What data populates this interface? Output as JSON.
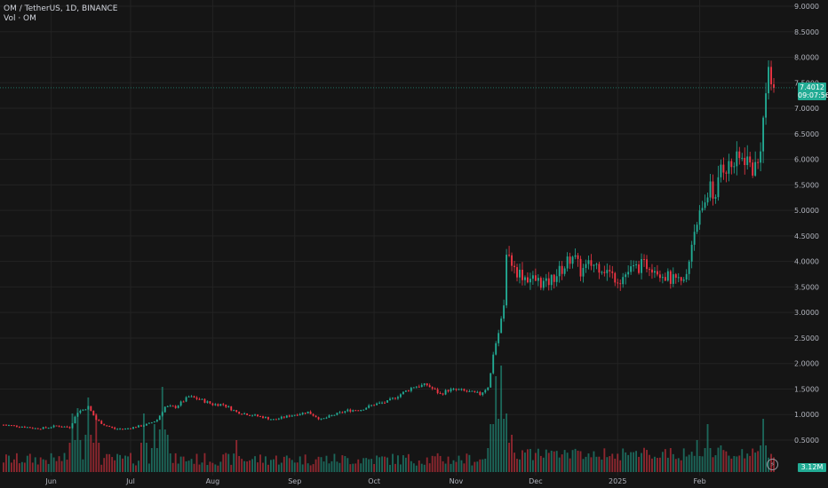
{
  "legend": {
    "symbol_line": "OM / TetherUS, 1D, BINANCE",
    "volume_line": "Vol · OM"
  },
  "badges": {
    "last_price": "7.4012",
    "countdown": "09:07:56",
    "volume": "3.12M"
  },
  "colors": {
    "up": "#22ab94",
    "down": "#f23645",
    "background": "#151515",
    "grid": "#232323",
    "axis_text": "#b2b5be"
  },
  "chart_data": {
    "type": "candlestick",
    "title": "OM / TetherUS, 1D, BINANCE",
    "y_axis_side": "right",
    "y_ticks": [
      "9.0000",
      "8.5000",
      "8.0000",
      "7.5000",
      "7.0000",
      "6.5000",
      "6.0000",
      "5.5000",
      "5.0000",
      "4.5000",
      "4.0000",
      "3.5000",
      "3.0000",
      "2.5000",
      "2.0000",
      "1.5000",
      "1.0000",
      "0.5000"
    ],
    "ylim": [
      0,
      9.1
    ],
    "x_ticks": [
      "Jun",
      "Jul",
      "Aug",
      "Sep",
      "Oct",
      "Nov",
      "Dec",
      "2025",
      "Feb"
    ],
    "x_tick_days": [
      18,
      48,
      79,
      110,
      140,
      171,
      201,
      232,
      263
    ],
    "period_days": 292,
    "last_price": 7.4012,
    "close_keyframes": [
      [
        0,
        0.8
      ],
      [
        8,
        0.76
      ],
      [
        12,
        0.73
      ],
      [
        16,
        0.74
      ],
      [
        20,
        0.78
      ],
      [
        25,
        0.75
      ],
      [
        28,
        1.05
      ],
      [
        32,
        1.15
      ],
      [
        35,
        0.9
      ],
      [
        38,
        0.8
      ],
      [
        42,
        0.72
      ],
      [
        46,
        0.72
      ],
      [
        52,
        0.78
      ],
      [
        55,
        0.82
      ],
      [
        58,
        0.9
      ],
      [
        61,
        1.15
      ],
      [
        65,
        1.15
      ],
      [
        70,
        1.35
      ],
      [
        74,
        1.3
      ],
      [
        79,
        1.2
      ],
      [
        83,
        1.2
      ],
      [
        88,
        1.05
      ],
      [
        93,
        1.0
      ],
      [
        98,
        0.95
      ],
      [
        102,
        0.9
      ],
      [
        106,
        0.95
      ],
      [
        110,
        1.0
      ],
      [
        115,
        1.05
      ],
      [
        120,
        0.9
      ],
      [
        124,
        0.98
      ],
      [
        130,
        1.08
      ],
      [
        135,
        1.1
      ],
      [
        140,
        1.2
      ],
      [
        145,
        1.25
      ],
      [
        150,
        1.4
      ],
      [
        155,
        1.55
      ],
      [
        160,
        1.58
      ],
      [
        165,
        1.4
      ],
      [
        168,
        1.48
      ],
      [
        172,
        1.48
      ],
      [
        175,
        1.45
      ],
      [
        180,
        1.4
      ],
      [
        183,
        1.55
      ],
      [
        184,
        1.8
      ],
      [
        185,
        2.2
      ],
      [
        187,
        2.6
      ],
      [
        189,
        3.1
      ],
      [
        190,
        4.25
      ],
      [
        193,
        3.85
      ],
      [
        197,
        3.7
      ],
      [
        200,
        3.65
      ],
      [
        205,
        3.55
      ],
      [
        208,
        3.7
      ],
      [
        212,
        3.9
      ],
      [
        215,
        4.15
      ],
      [
        218,
        3.8
      ],
      [
        222,
        3.95
      ],
      [
        226,
        3.9
      ],
      [
        230,
        3.72
      ],
      [
        233,
        3.65
      ],
      [
        236,
        3.8
      ],
      [
        240,
        3.9
      ],
      [
        244,
        3.95
      ],
      [
        248,
        3.8
      ],
      [
        252,
        3.65
      ],
      [
        256,
        3.55
      ],
      [
        258,
        3.7
      ],
      [
        259,
        4.0
      ],
      [
        260,
        4.4
      ],
      [
        262,
        4.85
      ],
      [
        264,
        4.9
      ],
      [
        266,
        5.3
      ],
      [
        267,
        5.6
      ],
      [
        269,
        5.15
      ],
      [
        271,
        5.9
      ],
      [
        274,
        5.85
      ],
      [
        277,
        5.95
      ],
      [
        280,
        6.05
      ],
      [
        283,
        5.82
      ],
      [
        285,
        5.9
      ],
      [
        287,
        6.75
      ],
      [
        288,
        7.3
      ],
      [
        289,
        7.55
      ],
      [
        291,
        7.4
      ]
    ],
    "volume_scale_note": "volume shown as relative bars at bottom",
    "volume_spikes": [
      [
        26,
        0.55
      ],
      [
        28,
        0.6
      ],
      [
        32,
        0.7
      ],
      [
        35,
        0.55
      ],
      [
        53,
        0.55
      ],
      [
        57,
        0.45
      ],
      [
        60,
        0.8
      ],
      [
        62,
        0.35
      ],
      [
        88,
        0.3
      ],
      [
        184,
        0.45
      ],
      [
        186,
        0.9
      ],
      [
        188,
        1.0
      ],
      [
        190,
        0.55
      ],
      [
        192,
        0.35
      ],
      [
        262,
        0.3
      ],
      [
        266,
        0.45
      ],
      [
        271,
        0.25
      ],
      [
        287,
        0.5
      ]
    ]
  }
}
